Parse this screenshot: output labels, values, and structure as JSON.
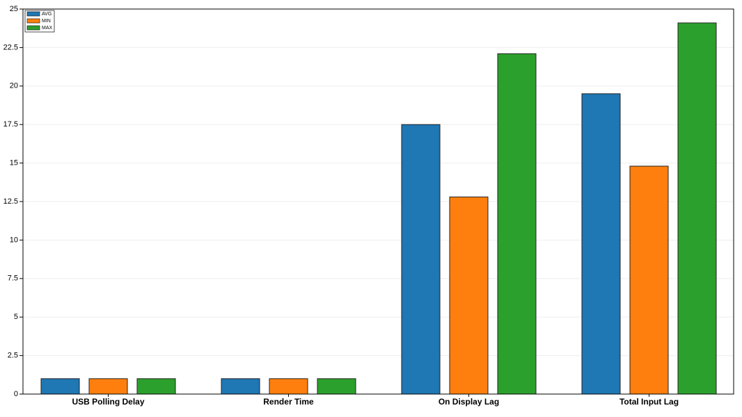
{
  "chart_data": {
    "type": "bar",
    "categories": [
      "USB Polling Delay",
      "Render Time",
      "On Display Lag",
      "Total Input Lag"
    ],
    "series": [
      {
        "name": "AVG",
        "color": "#1f77b4",
        "values": [
          1.0,
          1.0,
          17.5,
          19.5
        ]
      },
      {
        "name": "MIN",
        "color": "#ff7f0e",
        "values": [
          1.0,
          1.0,
          12.8,
          14.8
        ]
      },
      {
        "name": "MAX",
        "color": "#2ca02c",
        "values": [
          1.0,
          1.0,
          22.1,
          24.1
        ]
      }
    ],
    "ylim": [
      0,
      25
    ],
    "yticks": [
      0,
      2.5,
      5,
      7.5,
      10,
      12.5,
      15,
      17.5,
      20,
      22.5,
      25
    ],
    "grid": true,
    "legend": "upper-left"
  }
}
